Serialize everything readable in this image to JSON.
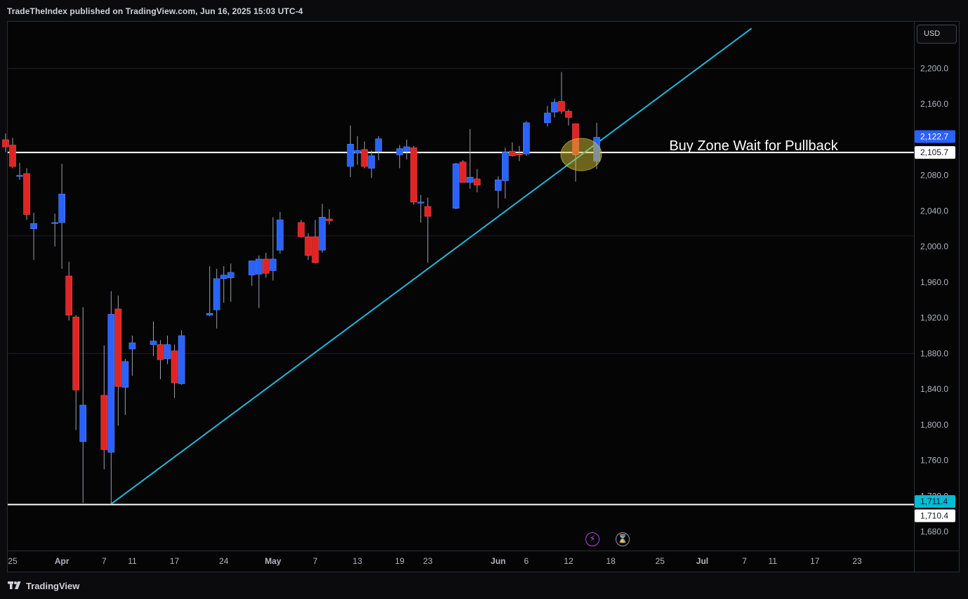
{
  "header": {
    "text": "TradeTheIndex published on TradingView.com, Jun 16, 2025 15:03 UTC-4"
  },
  "toolbar": {
    "currency_label": "USD"
  },
  "footer": {
    "brand_label": "TradingView"
  },
  "icons": {
    "flash": "lightning-icon",
    "timer": "hourglass-icon",
    "logo": "tradingview-logo-icon"
  },
  "colors": {
    "up": "#2962ff",
    "down": "#e02424",
    "trendline": "#1fb8d9",
    "level_line": "#ffffff",
    "highlight": "#d4c233",
    "price_tag_blue": "#2962ff",
    "price_tag_cyan": "#00bcd4"
  },
  "chart_data": {
    "type": "candlestick",
    "y_axis": {
      "ticks": [
        1680,
        1720,
        1760,
        1800,
        1840,
        1880,
        1920,
        1960,
        2000,
        2040,
        2080,
        2120,
        2160,
        2200
      ],
      "tick_labels": [
        "1,680.0",
        "1,720.0",
        "1,760.0",
        "1,800.0",
        "1,840.0",
        "1,880.0",
        "1,920.0",
        "1,960.0",
        "2,000.0",
        "2,040.0",
        "2,080.0",
        "2,120.0",
        "2,160.0",
        "2,200.0"
      ],
      "range": [
        1661,
        2250
      ]
    },
    "x_axis": {
      "labels": [
        {
          "label": "25",
          "date": "2025-03-25"
        },
        {
          "label": "Apr",
          "date": "2025-04-01"
        },
        {
          "label": "7",
          "date": "2025-04-07"
        },
        {
          "label": "11",
          "date": "2025-04-11"
        },
        {
          "label": "17",
          "date": "2025-04-17"
        },
        {
          "label": "24",
          "date": "2025-04-24"
        },
        {
          "label": "May",
          "date": "2025-05-01"
        },
        {
          "label": "7",
          "date": "2025-05-07"
        },
        {
          "label": "13",
          "date": "2025-05-13"
        },
        {
          "label": "19",
          "date": "2025-05-19"
        },
        {
          "label": "23",
          "date": "2025-05-23"
        },
        {
          "label": "Jun",
          "date": "2025-06-02"
        },
        {
          "label": "6",
          "date": "2025-06-06"
        },
        {
          "label": "12",
          "date": "2025-06-12"
        },
        {
          "label": "18",
          "date": "2025-06-18"
        },
        {
          "label": "25",
          "date": "2025-06-25"
        },
        {
          "label": "Jul",
          "date": "2025-07-01"
        },
        {
          "label": "7",
          "date": "2025-07-07"
        },
        {
          "label": "11",
          "date": "2025-07-11"
        },
        {
          "label": "17",
          "date": "2025-07-17"
        },
        {
          "label": "23",
          "date": "2025-07-23"
        }
      ],
      "range": [
        "2025-03-24",
        "2025-07-30"
      ]
    },
    "candles": [
      {
        "date": "2025-03-24",
        "o": 2120,
        "h": 2127,
        "l": 2106,
        "c": 2112
      },
      {
        "date": "2025-03-25",
        "o": 2114,
        "h": 2122,
        "l": 2088,
        "c": 2090
      },
      {
        "date": "2025-03-26",
        "o": 2080,
        "h": 2094,
        "l": 2075,
        "c": 2080
      },
      {
        "date": "2025-03-27",
        "o": 2082,
        "h": 2088,
        "l": 2030,
        "c": 2036
      },
      {
        "date": "2025-03-28",
        "o": 2020,
        "h": 2038,
        "l": 1985,
        "c": 2026
      },
      {
        "date": "2025-03-31",
        "o": 2026,
        "h": 2037,
        "l": 2000,
        "c": 2027
      },
      {
        "date": "2025-04-01",
        "o": 2027,
        "h": 2093,
        "l": 1975,
        "c": 2059
      },
      {
        "date": "2025-04-02",
        "o": 1967,
        "h": 1983,
        "l": 1917,
        "c": 1923
      },
      {
        "date": "2025-04-03",
        "o": 1921,
        "h": 1923,
        "l": 1794,
        "c": 1839
      },
      {
        "date": "2025-04-04",
        "o": 1781,
        "h": 1932,
        "l": 1712,
        "c": 1822
      },
      {
        "date": "2025-04-07",
        "o": 1833,
        "h": 1889,
        "l": 1750,
        "c": 1772
      },
      {
        "date": "2025-04-08",
        "o": 1769,
        "h": 1950,
        "l": 1711,
        "c": 1924
      },
      {
        "date": "2025-04-09",
        "o": 1930,
        "h": 1945,
        "l": 1799,
        "c": 1843
      },
      {
        "date": "2025-04-10",
        "o": 1842,
        "h": 1874,
        "l": 1811,
        "c": 1871
      },
      {
        "date": "2025-04-11",
        "o": 1885,
        "h": 1900,
        "l": 1855,
        "c": 1892
      },
      {
        "date": "2025-04-14",
        "o": 1890,
        "h": 1916,
        "l": 1877,
        "c": 1894
      },
      {
        "date": "2025-04-15",
        "o": 1890,
        "h": 1895,
        "l": 1851,
        "c": 1873
      },
      {
        "date": "2025-04-16",
        "o": 1874,
        "h": 1900,
        "l": 1868,
        "c": 1890
      },
      {
        "date": "2025-04-17",
        "o": 1883,
        "h": 1890,
        "l": 1830,
        "c": 1847
      },
      {
        "date": "2025-04-18",
        "o": 1846,
        "h": 1906,
        "l": 1845,
        "c": 1900
      },
      {
        "date": "2025-04-22",
        "o": 1923,
        "h": 1978,
        "l": 1922,
        "c": 1925
      },
      {
        "date": "2025-04-23",
        "o": 1929,
        "h": 1975,
        "l": 1908,
        "c": 1964
      },
      {
        "date": "2025-04-24",
        "o": 1964,
        "h": 1978,
        "l": 1937,
        "c": 1968
      },
      {
        "date": "2025-04-25",
        "o": 1965,
        "h": 1981,
        "l": 1938,
        "c": 1971
      },
      {
        "date": "2025-04-28",
        "o": 1968,
        "h": 1983,
        "l": 1956,
        "c": 1984
      },
      {
        "date": "2025-04-29",
        "o": 1969,
        "h": 1990,
        "l": 1931,
        "c": 1986
      },
      {
        "date": "2025-04-30",
        "o": 1986,
        "h": 1993,
        "l": 1965,
        "c": 1970
      },
      {
        "date": "2025-05-01",
        "o": 1973,
        "h": 2033,
        "l": 1962,
        "c": 1986
      },
      {
        "date": "2025-05-02",
        "o": 1996,
        "h": 2039,
        "l": 1992,
        "c": 2030
      },
      {
        "date": "2025-05-05",
        "o": 2027,
        "h": 2030,
        "l": 2010,
        "c": 2011
      },
      {
        "date": "2025-05-06",
        "o": 2011,
        "h": 2015,
        "l": 1985,
        "c": 1990
      },
      {
        "date": "2025-05-07",
        "o": 2011,
        "h": 2030,
        "l": 1981,
        "c": 1982
      },
      {
        "date": "2025-05-08",
        "o": 1996,
        "h": 2048,
        "l": 1993,
        "c": 2033
      },
      {
        "date": "2025-05-09",
        "o": 2031,
        "h": 2042,
        "l": 2025,
        "c": 2029
      },
      {
        "date": "2025-05-12",
        "o": 2090,
        "h": 2136,
        "l": 2078,
        "c": 2115
      },
      {
        "date": "2025-05-13",
        "o": 2105,
        "h": 2124,
        "l": 2092,
        "c": 2108
      },
      {
        "date": "2025-05-14",
        "o": 2109,
        "h": 2118,
        "l": 2088,
        "c": 2090
      },
      {
        "date": "2025-05-15",
        "o": 2088,
        "h": 2108,
        "l": 2077,
        "c": 2102
      },
      {
        "date": "2025-05-16",
        "o": 2107,
        "h": 2124,
        "l": 2097,
        "c": 2121
      },
      {
        "date": "2025-05-19",
        "o": 2103,
        "h": 2114,
        "l": 2088,
        "c": 2110
      },
      {
        "date": "2025-05-20",
        "o": 2107,
        "h": 2120,
        "l": 2098,
        "c": 2112
      },
      {
        "date": "2025-05-21",
        "o": 2111,
        "h": 2113,
        "l": 2047,
        "c": 2050
      },
      {
        "date": "2025-05-22",
        "o": 2050,
        "h": 2058,
        "l": 2027,
        "c": 2050
      },
      {
        "date": "2025-05-23",
        "o": 2045,
        "h": 2055,
        "l": 1982,
        "c": 2034
      },
      {
        "date": "2025-05-27",
        "o": 2043,
        "h": 2094,
        "l": 2042,
        "c": 2093
      },
      {
        "date": "2025-05-28",
        "o": 2095,
        "h": 2097,
        "l": 2072,
        "c": 2072
      },
      {
        "date": "2025-05-29",
        "o": 2072,
        "h": 2132,
        "l": 2065,
        "c": 2078
      },
      {
        "date": "2025-05-30",
        "o": 2076,
        "h": 2087,
        "l": 2061,
        "c": 2069
      },
      {
        "date": "2025-06-02",
        "o": 2063,
        "h": 2079,
        "l": 2043,
        "c": 2075
      },
      {
        "date": "2025-06-03",
        "o": 2074,
        "h": 2111,
        "l": 2054,
        "c": 2106
      },
      {
        "date": "2025-06-04",
        "o": 2107,
        "h": 2117,
        "l": 2101,
        "c": 2102
      },
      {
        "date": "2025-06-05",
        "o": 2104,
        "h": 2113,
        "l": 2096,
        "c": 2103
      },
      {
        "date": "2025-06-06",
        "o": 2104,
        "h": 2141,
        "l": 2102,
        "c": 2139
      },
      {
        "date": "2025-06-09",
        "o": 2139,
        "h": 2158,
        "l": 2135,
        "c": 2150
      },
      {
        "date": "2025-06-10",
        "o": 2151,
        "h": 2166,
        "l": 2145,
        "c": 2162
      },
      {
        "date": "2025-06-11",
        "o": 2163,
        "h": 2196,
        "l": 2149,
        "c": 2152
      },
      {
        "date": "2025-06-12",
        "o": 2152,
        "h": 2154,
        "l": 2136,
        "c": 2145
      },
      {
        "date": "2025-06-13",
        "o": 2138,
        "h": 2138,
        "l": 2073,
        "c": 2103
      },
      {
        "date": "2025-06-16",
        "o": 2096,
        "h": 2139,
        "l": 2087,
        "c": 2122.7
      }
    ],
    "levels": [
      {
        "name": "resistance-support",
        "value": 2105.7,
        "label": "2,105.7"
      },
      {
        "name": "low-level",
        "value": 1710.4,
        "label": "1,710.4"
      }
    ],
    "price_tags": [
      {
        "value": 2122.7,
        "label": "2,122.7",
        "style": "last-price"
      },
      {
        "value": 2105.7,
        "label": "2,105.7",
        "style": "level"
      },
      {
        "value": 1711.4,
        "label": "1,711.4",
        "style": "trendline"
      },
      {
        "value": 1710.4,
        "label": "1,710.4",
        "style": "level"
      }
    ],
    "trendline": {
      "start": {
        "date": "2025-04-08",
        "value": 1711
      },
      "end": {
        "date": "2025-07-08",
        "value": 2245
      }
    },
    "annotations": [
      {
        "text": "Buy Zone Wait for Pullback",
        "date": "2025-06-26",
        "value": 2113
      }
    ],
    "highlight_zone": {
      "date": "2025-06-13",
      "value": 2105,
      "type": "ellipse"
    },
    "grid": true,
    "grid_lines": [
      1880,
      2012,
      2200
    ]
  }
}
